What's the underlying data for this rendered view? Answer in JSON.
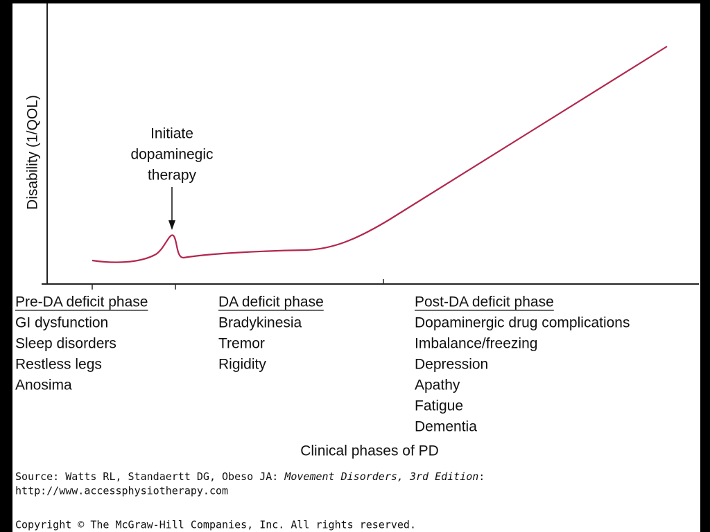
{
  "y_axis_label": "Disability (1/QOL)",
  "annotation": [
    "Initiate",
    "dopaminegic",
    "therapy"
  ],
  "phases": [
    {
      "title": "Pre-DA deficit phase",
      "items": [
        "GI dysfunction",
        "Sleep disorders",
        "Restless legs",
        "Anosima"
      ]
    },
    {
      "title": "DA deficit phase",
      "items": [
        "Bradykinesia",
        "Tremor",
        "Rigidity"
      ]
    },
    {
      "title": "Post-DA deficit phase",
      "items": [
        "Dopaminergic drug complications",
        "Imbalance/freezing",
        "Depression",
        "Apathy",
        "Fatigue",
        "Dementia"
      ]
    }
  ],
  "x_axis_label": "Clinical phases of PD",
  "source": {
    "prefix": "Source: Watts RL, Standaertt DG, Obeso JA: ",
    "title": "Movement Disorders, 3rd Edition",
    "suffix": ":",
    "url": "http://www.accessphysiotherapy.com"
  },
  "copyright": "Copyright © The McGraw-Hill Companies, Inc. All rights reserved."
}
